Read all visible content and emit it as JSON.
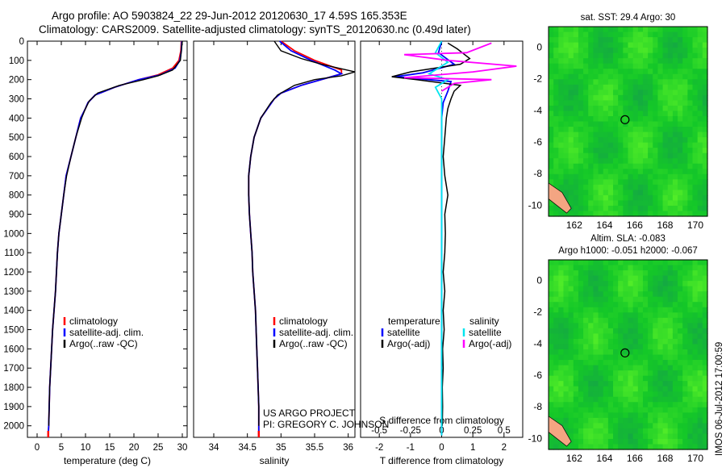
{
  "header": {
    "title_line1": "Argo profile: AO 5903824_22 29-Jun-2012 20120630_17 4.59S 165.353E",
    "title_line2": "Climatology: CARS2009. Satellite-adjusted climatology: synTS_20120630.nc (0.49d later)"
  },
  "credit": {
    "line1": "US ARGO PROJECT",
    "line2": "PI: GREGORY C. JOHNSON"
  },
  "side_stamp": "IMOS 06-Jul-2012 17:00:59",
  "colors": {
    "climatology": "#ff0000",
    "satellite": "#0000ff",
    "argo": "#000000",
    "salinity_satellite": "#00e5ee",
    "salinity_argo": "#ff00ff",
    "map_green": "#33cc33",
    "map_land": "#f4a582"
  },
  "chart_data": [
    {
      "type": "line",
      "id": "temperature-profile",
      "xlabel": "temperature (deg C)",
      "ylabel": "",
      "xlim": [
        -2,
        31
      ],
      "ylim": [
        2060,
        0
      ],
      "xticks": [
        0,
        5,
        10,
        15,
        20,
        25,
        30
      ],
      "yticks": [
        0,
        100,
        200,
        300,
        400,
        500,
        600,
        700,
        800,
        900,
        1000,
        1100,
        1200,
        1300,
        1400,
        1500,
        1600,
        1700,
        1800,
        1900,
        2000
      ],
      "legend": [
        "climatology",
        "satellite-adj. clim.",
        "Argo(..raw -QC)"
      ],
      "legend_position": "lower-center",
      "series": [
        {
          "name": "climatology",
          "color": "#ff0000",
          "points": [
            [
              29.8,
              0
            ],
            [
              29.7,
              50
            ],
            [
              29.3,
              100
            ],
            [
              28,
              140
            ],
            [
              25,
              175
            ],
            [
              21,
              200
            ],
            [
              16,
              240
            ],
            [
              12,
              280
            ],
            [
              10.5,
              320
            ],
            [
              10,
              350
            ],
            [
              9,
              400
            ],
            [
              8,
              500
            ],
            [
              7,
              600
            ],
            [
              6,
              700
            ],
            [
              5.5,
              800
            ],
            [
              5,
              900
            ],
            [
              4.5,
              1000
            ],
            [
              4.2,
              1100
            ],
            [
              4,
              1200
            ],
            [
              3.8,
              1300
            ],
            [
              3.5,
              1400
            ],
            [
              3.2,
              1500
            ],
            [
              3,
              1600
            ],
            [
              2.8,
              1700
            ],
            [
              2.6,
              1800
            ],
            [
              2.5,
              1900
            ],
            [
              2.4,
              2000
            ],
            [
              2.3,
              2050
            ]
          ]
        },
        {
          "name": "satellite-adj. clim.",
          "color": "#0000ff",
          "points": [
            [
              29.9,
              0
            ],
            [
              29.8,
              50
            ],
            [
              29.5,
              100
            ],
            [
              28.5,
              140
            ],
            [
              25.5,
              175
            ],
            [
              21,
              200
            ],
            [
              16,
              240
            ],
            [
              12,
              280
            ],
            [
              10.5,
              320
            ],
            [
              10,
              350
            ],
            [
              9,
              400
            ],
            [
              8,
              500
            ],
            [
              7,
              600
            ],
            [
              6,
              700
            ],
            [
              5.5,
              800
            ],
            [
              5,
              900
            ],
            [
              4.5,
              1000
            ],
            [
              4.2,
              1100
            ],
            [
              4,
              1200
            ],
            [
              3.8,
              1300
            ],
            [
              3.5,
              1400
            ],
            [
              3.2,
              1500
            ],
            [
              3,
              1600
            ],
            [
              2.8,
              1700
            ],
            [
              2.6,
              1800
            ],
            [
              2.5,
              1900
            ],
            [
              2.4,
              2000
            ],
            [
              2.3,
              2050
            ]
          ]
        },
        {
          "name": "Argo(..raw -QC)",
          "color": "#000000",
          "points": [
            [
              30,
              0
            ],
            [
              29.8,
              50
            ],
            [
              29.6,
              100
            ],
            [
              28,
              150
            ],
            [
              25,
              180
            ],
            [
              22,
              200
            ],
            [
              17,
              230
            ],
            [
              12.5,
              270
            ],
            [
              10.8,
              310
            ],
            [
              10,
              350
            ],
            [
              9.2,
              400
            ],
            [
              8,
              500
            ],
            [
              7,
              600
            ],
            [
              6.1,
              700
            ],
            [
              5.5,
              800
            ],
            [
              5,
              900
            ],
            [
              4.5,
              1000
            ],
            [
              4.2,
              1100
            ],
            [
              4,
              1200
            ],
            [
              3.8,
              1300
            ],
            [
              3.5,
              1400
            ],
            [
              3.2,
              1500
            ],
            [
              3,
              1600
            ],
            [
              2.8,
              1700
            ],
            [
              2.6,
              1800
            ],
            [
              2.5,
              1900
            ],
            [
              2.4,
              2000
            ]
          ]
        }
      ]
    },
    {
      "type": "line",
      "id": "salinity-profile",
      "xlabel": "salinity",
      "xlim": [
        33.7,
        36.1
      ],
      "ylim": [
        2060,
        0
      ],
      "xticks": [
        34,
        34.5,
        35,
        35.5,
        36
      ],
      "legend": [
        "climatology",
        "satellite-adj. clim.",
        "Argo(..raw -QC)"
      ],
      "legend_position": "lower-center",
      "series": [
        {
          "name": "climatology",
          "color": "#ff0000",
          "points": [
            [
              35,
              0
            ],
            [
              35.2,
              50
            ],
            [
              35.5,
              100
            ],
            [
              35.9,
              150
            ],
            [
              35.9,
              170
            ],
            [
              35.7,
              190
            ],
            [
              35.3,
              230
            ],
            [
              35,
              270
            ],
            [
              34.9,
              300
            ],
            [
              34.7,
              400
            ],
            [
              34.6,
              500
            ],
            [
              34.55,
              600
            ],
            [
              34.52,
              700
            ],
            [
              34.52,
              800
            ],
            [
              34.53,
              900
            ],
            [
              34.55,
              1000
            ],
            [
              34.57,
              1100
            ],
            [
              34.58,
              1200
            ],
            [
              34.6,
              1300
            ],
            [
              34.62,
              1400
            ],
            [
              34.63,
              1500
            ],
            [
              34.64,
              1600
            ],
            [
              34.65,
              1700
            ],
            [
              34.66,
              1800
            ],
            [
              34.67,
              1900
            ],
            [
              34.67,
              2000
            ],
            [
              34.67,
              2050
            ]
          ]
        },
        {
          "name": "satellite-adj. clim.",
          "color": "#0000ff",
          "points": [
            [
              34.98,
              0
            ],
            [
              35.15,
              50
            ],
            [
              35.45,
              100
            ],
            [
              35.8,
              150
            ],
            [
              35.9,
              170
            ],
            [
              35.7,
              190
            ],
            [
              35.3,
              230
            ],
            [
              35,
              270
            ],
            [
              34.9,
              300
            ],
            [
              34.7,
              400
            ],
            [
              34.6,
              500
            ],
            [
              34.55,
              600
            ],
            [
              34.52,
              700
            ],
            [
              34.52,
              800
            ],
            [
              34.53,
              900
            ],
            [
              34.55,
              1000
            ],
            [
              34.57,
              1100
            ],
            [
              34.58,
              1200
            ],
            [
              34.6,
              1300
            ],
            [
              34.62,
              1400
            ],
            [
              34.63,
              1500
            ],
            [
              34.64,
              1600
            ],
            [
              34.65,
              1700
            ],
            [
              34.66,
              1800
            ],
            [
              34.67,
              1900
            ],
            [
              34.67,
              2000
            ],
            [
              34.67,
              2050
            ]
          ]
        },
        {
          "name": "Argo(..raw -QC)",
          "color": "#000000",
          "points": [
            [
              34.9,
              0
            ],
            [
              35.0,
              50
            ],
            [
              35.3,
              90
            ],
            [
              35.6,
              120
            ],
            [
              36.1,
              160
            ],
            [
              35.9,
              180
            ],
            [
              35.5,
              200
            ],
            [
              35.2,
              230
            ],
            [
              34.95,
              280
            ],
            [
              34.85,
              320
            ],
            [
              34.7,
              400
            ],
            [
              34.6,
              500
            ],
            [
              34.55,
              600
            ],
            [
              34.52,
              700
            ],
            [
              34.52,
              800
            ],
            [
              34.53,
              900
            ],
            [
              34.55,
              1000
            ],
            [
              34.57,
              1100
            ],
            [
              34.58,
              1200
            ],
            [
              34.6,
              1300
            ],
            [
              34.62,
              1400
            ],
            [
              34.63,
              1500
            ],
            [
              34.64,
              1600
            ],
            [
              34.65,
              1700
            ],
            [
              34.66,
              1800
            ],
            [
              34.67,
              1900
            ],
            [
              34.67,
              2000
            ]
          ]
        }
      ]
    },
    {
      "type": "line",
      "id": "difference-profile",
      "xlabel": "T difference from climatology",
      "xlabel_top": "S difference from climatology",
      "xlim_T": [
        -2.6,
        2.6
      ],
      "xticks_T": [
        -2,
        -1,
        0,
        1,
        2
      ],
      "xlim_S": [
        -0.65,
        0.65
      ],
      "xticks_S": [
        -0.5,
        -0.25,
        0,
        0.25,
        0.5
      ],
      "xtick_labels_S": [
        "-0.5",
        "-0.25",
        "0",
        "0.25",
        "0.5"
      ],
      "ylim": [
        2060,
        0
      ],
      "legend_temperature_title": "temperature",
      "legend_salinity_title": "salinity",
      "legend": [
        "satellite",
        "Argo(-adj)",
        "satellite",
        "Argo(-adj)"
      ],
      "series": [
        {
          "name": "satellite",
          "group": "temperature",
          "color": "#0000ff",
          "axis": "T",
          "points": [
            [
              0,
              0
            ],
            [
              -0.1,
              60
            ],
            [
              0.4,
              120
            ],
            [
              -0.6,
              165
            ],
            [
              -1.5,
              185
            ],
            [
              0.3,
              210
            ],
            [
              0.2,
              260
            ],
            [
              0.05,
              320
            ],
            [
              0,
              400
            ],
            [
              0,
              2050
            ]
          ]
        },
        {
          "name": "Argo(-adj)",
          "group": "temperature",
          "color": "#000000",
          "axis": "T",
          "points": [
            [
              0.2,
              10
            ],
            [
              0.5,
              40
            ],
            [
              0.9,
              90
            ],
            [
              0.6,
              120
            ],
            [
              -1.0,
              160
            ],
            [
              -1.6,
              185
            ],
            [
              -0.8,
              200
            ],
            [
              0.6,
              230
            ],
            [
              0.4,
              260
            ],
            [
              0.3,
              300
            ],
            [
              0.2,
              350
            ],
            [
              0.15,
              400
            ],
            [
              0.1,
              500
            ],
            [
              0.05,
              600
            ],
            [
              0.1,
              700
            ],
            [
              0.2,
              800
            ],
            [
              0.1,
              900
            ],
            [
              0.12,
              1000
            ],
            [
              0.1,
              1100
            ],
            [
              0.05,
              1200
            ],
            [
              0.1,
              1300
            ],
            [
              0.05,
              1400
            ],
            [
              0.08,
              1500
            ],
            [
              0.03,
              1600
            ],
            [
              0.05,
              1700
            ],
            [
              0.02,
              1800
            ],
            [
              0.03,
              1900
            ],
            [
              0.02,
              2000
            ]
          ]
        },
        {
          "name": "satellite",
          "group": "salinity",
          "color": "#00e5ee",
          "axis": "S",
          "points": [
            [
              0,
              0
            ],
            [
              -0.05,
              60
            ],
            [
              0.05,
              110
            ],
            [
              -0.1,
              170
            ],
            [
              0.05,
              200
            ],
            [
              -0.05,
              240
            ],
            [
              0,
              300
            ],
            [
              0,
              2050
            ]
          ]
        },
        {
          "name": "Argo(-adj)",
          "group": "salinity",
          "color": "#ff00ff",
          "axis": "S",
          "points": [
            [
              0.4,
              10
            ],
            [
              0.2,
              60
            ],
            [
              -0.3,
              70
            ],
            [
              0.05,
              100
            ],
            [
              0.6,
              130
            ],
            [
              0.25,
              160
            ],
            [
              -0.3,
              190
            ],
            [
              0.4,
              200
            ],
            [
              0.1,
              220
            ],
            [
              0,
              260
            ]
          ]
        }
      ]
    },
    {
      "type": "heatmap",
      "id": "sst-map",
      "title": "sat. SST: 29.4  Argo: 30",
      "xlim": [
        160.3,
        170.8
      ],
      "ylim": [
        -10.7,
        1.3
      ],
      "xticks": [
        162,
        164,
        166,
        168,
        170
      ],
      "yticks": [
        0,
        -2,
        -4,
        -6,
        -8,
        -10
      ],
      "marker": {
        "lon": 165.353,
        "lat": -4.59
      }
    },
    {
      "type": "heatmap",
      "id": "sla-map",
      "title": "Altim. SLA: -0.083",
      "subtitle": "Argo h1000: -0.051 h2000: -0.067",
      "xlim": [
        160.3,
        170.8
      ],
      "ylim": [
        -10.7,
        1.3
      ],
      "xticks": [
        162,
        164,
        166,
        168,
        170
      ],
      "yticks": [
        0,
        -2,
        -4,
        -6,
        -8,
        -10
      ],
      "marker": {
        "lon": 165.353,
        "lat": -4.59
      }
    }
  ]
}
